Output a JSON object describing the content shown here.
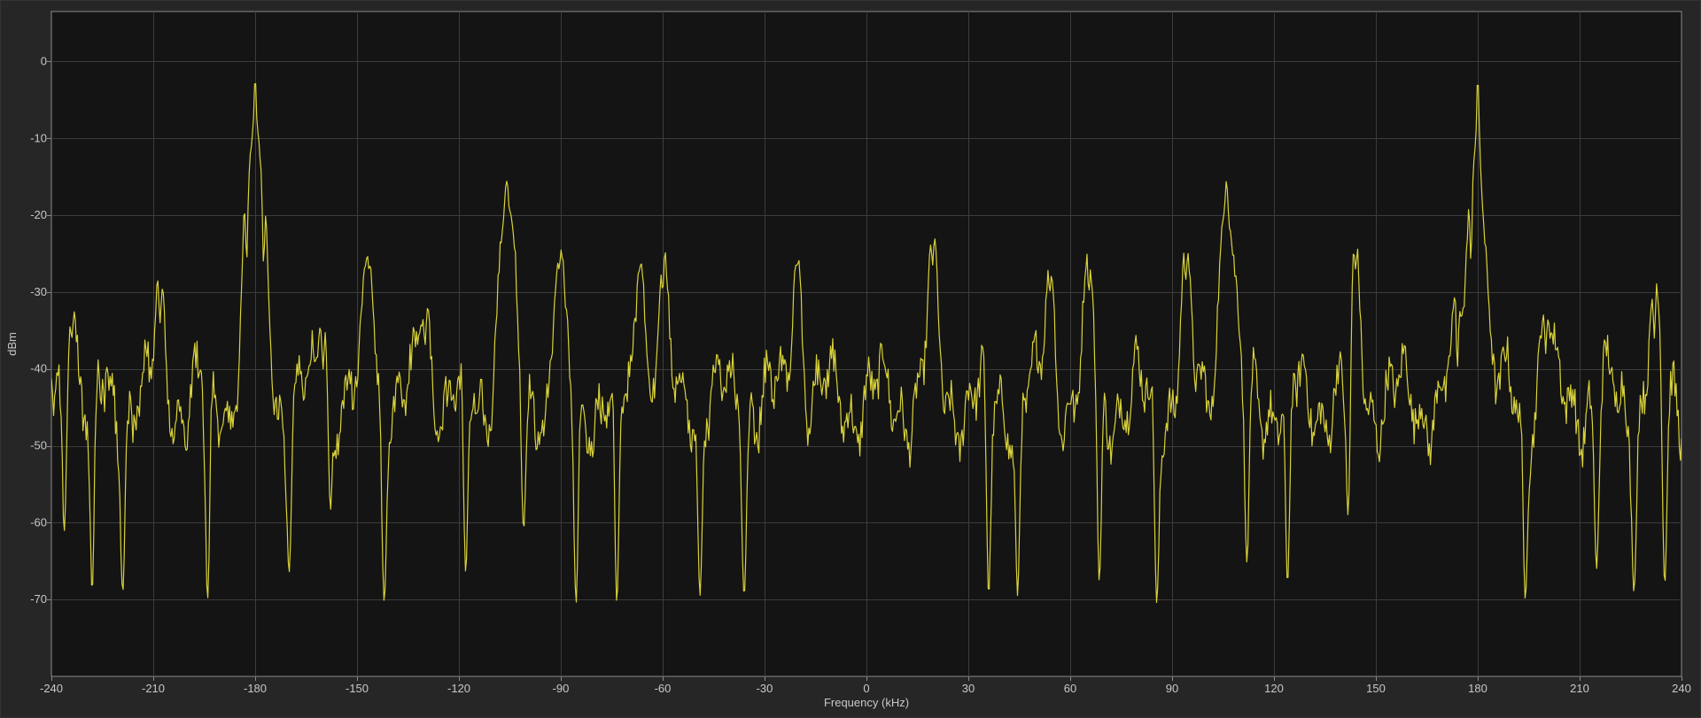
{
  "chart_data": {
    "type": "line",
    "title": "",
    "xlabel": "Frequency (kHz)",
    "ylabel": "dBm",
    "xlim": [
      -240,
      240
    ],
    "ylim": [
      -80,
      6.5
    ],
    "x_ticks": [
      -240,
      -210,
      -180,
      -150,
      -120,
      -90,
      -60,
      -30,
      0,
      30,
      60,
      90,
      120,
      150,
      180,
      210,
      240
    ],
    "y_ticks": [
      0,
      -10,
      -20,
      -30,
      -40,
      -50,
      -60,
      -70
    ],
    "grid": true,
    "background": "#141414",
    "grid_color": "#3c3c3c",
    "frame_color": "#8a8a8a",
    "line_color": "#d9d23a",
    "series": [
      {
        "peaks": [
          {
            "x": -180,
            "y": -2
          },
          {
            "x": -106,
            "y": -15.5
          },
          {
            "x": 106,
            "y": -15.5
          },
          {
            "x": 180,
            "y": -2
          },
          {
            "x": -182.5,
            "y": -26
          },
          {
            "x": -177.5,
            "y": -26.5
          },
          {
            "x": -146.5,
            "y": -27
          },
          {
            "x": -90.5,
            "y": -27
          },
          {
            "x": -66.5,
            "y": -26.5
          },
          {
            "x": -20.5,
            "y": -26.5
          },
          {
            "x": 19.5,
            "y": -26.5
          },
          {
            "x": 65.5,
            "y": -30
          },
          {
            "x": 94,
            "y": -28.5
          },
          {
            "x": 144,
            "y": -27
          },
          {
            "x": 178,
            "y": -26
          },
          {
            "x": -234,
            "y": -36
          },
          {
            "x": 232,
            "y": -36
          },
          {
            "x": -208,
            "y": -34
          },
          {
            "x": -160,
            "y": -40
          },
          {
            "x": -130,
            "y": -37
          },
          {
            "x": -60,
            "y": -30
          },
          {
            "x": 54,
            "y": -30
          },
          {
            "x": 174,
            "y": -40
          },
          {
            "x": 200,
            "y": -38
          }
        ],
        "dips": [
          {
            "x": -236,
            "y": -71
          },
          {
            "x": -194,
            "y": -70
          },
          {
            "x": -142,
            "y": -70.5
          },
          {
            "x": -85.5,
            "y": -70.5
          },
          {
            "x": -73.5,
            "y": -70.5
          },
          {
            "x": -49,
            "y": -69.5
          },
          {
            "x": -36,
            "y": -69.5
          },
          {
            "x": 36,
            "y": -69.5
          },
          {
            "x": 44.5,
            "y": -69.5
          },
          {
            "x": 68.5,
            "y": -71
          },
          {
            "x": 85.5,
            "y": -70.5
          },
          {
            "x": 142,
            "y": -70.5
          },
          {
            "x": 194,
            "y": -70
          },
          {
            "x": 235,
            "y": -71
          },
          {
            "x": -228,
            "y": -69
          },
          {
            "x": -219,
            "y": -69
          },
          {
            "x": -170,
            "y": -66.5
          },
          {
            "x": -158,
            "y": -66.5
          },
          {
            "x": -118,
            "y": -66.5
          },
          {
            "x": -101,
            "y": -63.5
          },
          {
            "x": 112,
            "y": -66
          },
          {
            "x": 124,
            "y": -68
          },
          {
            "x": 215,
            "y": -66
          },
          {
            "x": 226,
            "y": -69
          }
        ]
      }
    ]
  }
}
